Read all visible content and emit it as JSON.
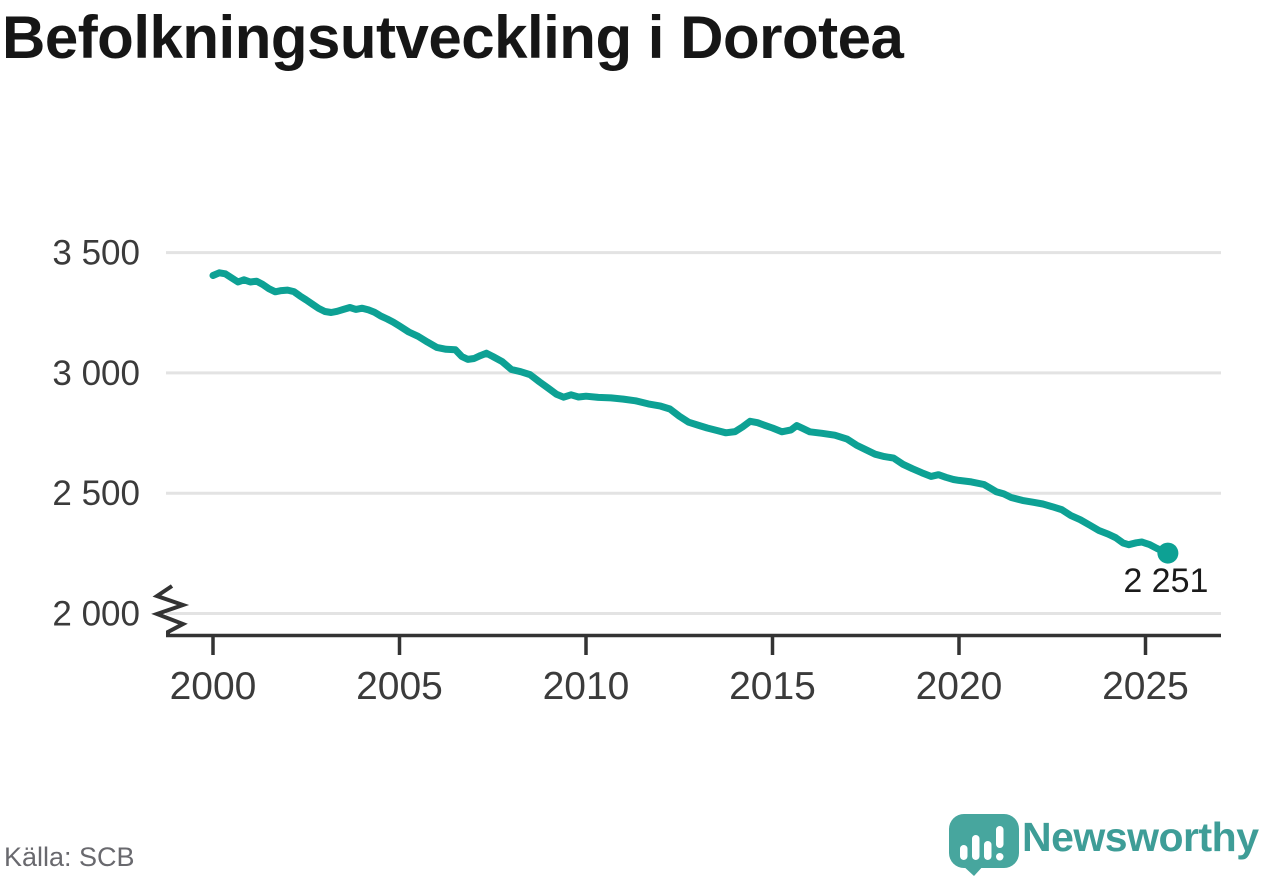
{
  "title": "Befolkningsutveckling i Dorotea",
  "source_label": "Källa: SCB",
  "branding": {
    "name": "Newsworthy",
    "wordmark_color": "#3e9d97",
    "mark_color": "#47a69e"
  },
  "colors": {
    "line": "#0da194",
    "grid": "#e3e3e3",
    "axis": "#333333",
    "tick_label": "#3b3b3b",
    "end_label": "#1b1b1b"
  },
  "chart_data": {
    "type": "line",
    "title": "Befolkningsutveckling i Dorotea",
    "xlabel": "",
    "ylabel": "",
    "grid": "horizontal",
    "legend": "none",
    "axis_break": true,
    "xlim": [
      1998.7,
      2027.0
    ],
    "ylim_displayed": [
      2000,
      3500
    ],
    "x_ticks": [
      {
        "value": 2000,
        "label": "2000"
      },
      {
        "value": 2005,
        "label": "2005"
      },
      {
        "value": 2010,
        "label": "2010"
      },
      {
        "value": 2015,
        "label": "2015"
      },
      {
        "value": 2020,
        "label": "2020"
      },
      {
        "value": 2025,
        "label": "2025"
      }
    ],
    "y_ticks": [
      {
        "value": 3500,
        "label": "3 500"
      },
      {
        "value": 3000,
        "label": "3 000"
      },
      {
        "value": 2500,
        "label": "2 500"
      },
      {
        "value": 2000,
        "label": "2 000"
      }
    ],
    "end_label": "2 251",
    "last_point": {
      "x": 2025.6,
      "y": 2251
    },
    "series": [
      {
        "points": [
          [
            2000.0,
            3405
          ],
          [
            2000.17,
            3416
          ],
          [
            2000.33,
            3412
          ],
          [
            2000.5,
            3395
          ],
          [
            2000.67,
            3378
          ],
          [
            2000.83,
            3387
          ],
          [
            2001.0,
            3378
          ],
          [
            2001.17,
            3381
          ],
          [
            2001.33,
            3368
          ],
          [
            2001.5,
            3350
          ],
          [
            2001.67,
            3337
          ],
          [
            2001.83,
            3342
          ],
          [
            2002.0,
            3344
          ],
          [
            2002.17,
            3338
          ],
          [
            2002.33,
            3320
          ],
          [
            2002.5,
            3303
          ],
          [
            2002.67,
            3285
          ],
          [
            2002.83,
            3268
          ],
          [
            2003.0,
            3255
          ],
          [
            2003.17,
            3251
          ],
          [
            2003.33,
            3256
          ],
          [
            2003.5,
            3264
          ],
          [
            2003.67,
            3272
          ],
          [
            2003.83,
            3264
          ],
          [
            2004.0,
            3269
          ],
          [
            2004.17,
            3262
          ],
          [
            2004.33,
            3252
          ],
          [
            2004.5,
            3236
          ],
          [
            2004.67,
            3224
          ],
          [
            2004.83,
            3211
          ],
          [
            2005.0,
            3195
          ],
          [
            2005.25,
            3170
          ],
          [
            2005.5,
            3152
          ],
          [
            2005.75,
            3128
          ],
          [
            2006.0,
            3106
          ],
          [
            2006.25,
            3098
          ],
          [
            2006.5,
            3096
          ],
          [
            2006.67,
            3068
          ],
          [
            2006.83,
            3056
          ],
          [
            2007.0,
            3060
          ],
          [
            2007.17,
            3072
          ],
          [
            2007.33,
            3082
          ],
          [
            2007.5,
            3068
          ],
          [
            2007.75,
            3047
          ],
          [
            2008.0,
            3014
          ],
          [
            2008.25,
            3005
          ],
          [
            2008.5,
            2993
          ],
          [
            2008.75,
            2963
          ],
          [
            2009.0,
            2935
          ],
          [
            2009.2,
            2912
          ],
          [
            2009.4,
            2899
          ],
          [
            2009.6,
            2909
          ],
          [
            2009.8,
            2900
          ],
          [
            2010.0,
            2903
          ],
          [
            2010.33,
            2898
          ],
          [
            2010.67,
            2896
          ],
          [
            2011.0,
            2891
          ],
          [
            2011.33,
            2884
          ],
          [
            2011.67,
            2871
          ],
          [
            2012.0,
            2862
          ],
          [
            2012.25,
            2850
          ],
          [
            2012.5,
            2820
          ],
          [
            2012.75,
            2795
          ],
          [
            2013.0,
            2783
          ],
          [
            2013.25,
            2771
          ],
          [
            2013.5,
            2761
          ],
          [
            2013.75,
            2751
          ],
          [
            2014.0,
            2756
          ],
          [
            2014.2,
            2776
          ],
          [
            2014.4,
            2799
          ],
          [
            2014.6,
            2793
          ],
          [
            2014.8,
            2782
          ],
          [
            2015.0,
            2771
          ],
          [
            2015.25,
            2755
          ],
          [
            2015.5,
            2763
          ],
          [
            2015.65,
            2781
          ],
          [
            2015.8,
            2770
          ],
          [
            2016.0,
            2755
          ],
          [
            2016.33,
            2749
          ],
          [
            2016.67,
            2741
          ],
          [
            2017.0,
            2725
          ],
          [
            2017.25,
            2700
          ],
          [
            2017.5,
            2681
          ],
          [
            2017.75,
            2662
          ],
          [
            2018.0,
            2652
          ],
          [
            2018.25,
            2646
          ],
          [
            2018.5,
            2620
          ],
          [
            2018.75,
            2602
          ],
          [
            2019.0,
            2585
          ],
          [
            2019.25,
            2570
          ],
          [
            2019.45,
            2577
          ],
          [
            2019.65,
            2566
          ],
          [
            2019.85,
            2557
          ],
          [
            2020.0,
            2553
          ],
          [
            2020.33,
            2547
          ],
          [
            2020.67,
            2536
          ],
          [
            2020.85,
            2520
          ],
          [
            2021.0,
            2506
          ],
          [
            2021.2,
            2497
          ],
          [
            2021.4,
            2482
          ],
          [
            2021.7,
            2470
          ],
          [
            2022.0,
            2462
          ],
          [
            2022.25,
            2455
          ],
          [
            2022.5,
            2444
          ],
          [
            2022.75,
            2432
          ],
          [
            2023.0,
            2407
          ],
          [
            2023.25,
            2390
          ],
          [
            2023.5,
            2368
          ],
          [
            2023.75,
            2345
          ],
          [
            2024.0,
            2330
          ],
          [
            2024.2,
            2315
          ],
          [
            2024.4,
            2293
          ],
          [
            2024.55,
            2286
          ],
          [
            2024.75,
            2294
          ],
          [
            2024.9,
            2297
          ],
          [
            2025.1,
            2287
          ],
          [
            2025.3,
            2271
          ],
          [
            2025.45,
            2260
          ],
          [
            2025.6,
            2251
          ]
        ]
      }
    ]
  }
}
